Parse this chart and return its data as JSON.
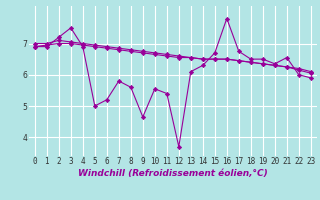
{
  "xlabel": "Windchill (Refroidissement éolien,°C)",
  "x": [
    0,
    1,
    2,
    3,
    4,
    5,
    6,
    7,
    8,
    9,
    10,
    11,
    12,
    13,
    14,
    15,
    16,
    17,
    18,
    19,
    20,
    21,
    22,
    23
  ],
  "line1": [
    6.9,
    6.9,
    7.2,
    7.5,
    6.9,
    5.0,
    5.2,
    5.8,
    5.6,
    4.65,
    5.55,
    5.4,
    3.7,
    6.1,
    6.3,
    6.7,
    7.8,
    6.75,
    6.5,
    6.5,
    6.35,
    6.55,
    6.0,
    5.9
  ],
  "line2": [
    7.0,
    7.0,
    7.1,
    7.05,
    7.0,
    6.95,
    6.9,
    6.85,
    6.8,
    6.75,
    6.7,
    6.65,
    6.6,
    6.55,
    6.5,
    6.5,
    6.5,
    6.45,
    6.4,
    6.35,
    6.3,
    6.25,
    6.15,
    6.05
  ],
  "line3": [
    6.9,
    6.95,
    7.0,
    7.0,
    6.95,
    6.9,
    6.85,
    6.8,
    6.75,
    6.7,
    6.65,
    6.6,
    6.55,
    6.55,
    6.5,
    6.5,
    6.5,
    6.45,
    6.4,
    6.35,
    6.3,
    6.25,
    6.2,
    6.1
  ],
  "line_color": "#990099",
  "bg_color": "#b3e5e5",
  "grid_color": "#ffffff",
  "yticks": [
    4,
    5,
    6,
    7
  ],
  "ylim": [
    3.4,
    8.2
  ],
  "xlim": [
    -0.5,
    23.5
  ],
  "xtick_labels": [
    "0",
    "1",
    "2",
    "3",
    "4",
    "5",
    "6",
    "7",
    "8",
    "9",
    "10",
    "11",
    "12",
    "13",
    "14",
    "15",
    "16",
    "17",
    "18",
    "19",
    "20",
    "21",
    "22",
    "23"
  ],
  "tick_fontsize": 5.5,
  "label_fontsize": 6.5,
  "marker": "D",
  "markersize": 2.2,
  "linewidth": 0.8
}
